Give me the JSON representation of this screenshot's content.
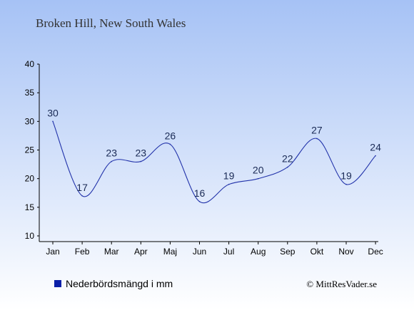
{
  "chart_data": {
    "type": "line",
    "title": "Broken Hill, New South Wales",
    "categories": [
      "Jan",
      "Feb",
      "Mar",
      "Apr",
      "Maj",
      "Jun",
      "Jul",
      "Aug",
      "Sep",
      "Okt",
      "Nov",
      "Dec"
    ],
    "series": [
      {
        "name": "Nederbördsmängd i mm",
        "values": [
          30,
          17,
          23,
          23,
          26,
          16,
          19,
          20,
          22,
          27,
          19,
          24
        ],
        "color": "#2233aa"
      }
    ],
    "yticks": [
      10,
      15,
      20,
      25,
      30,
      35,
      40
    ],
    "ylim": [
      10,
      40
    ],
    "grid": false,
    "legend_position": "bottom-left",
    "background_gradient": [
      "#a6c2f5",
      "#ffffff"
    ]
  },
  "legend": {
    "label": "Nederbördsmängd i mm",
    "swatch_color": "#0a1fa8"
  },
  "credit": "© MittResVader.se"
}
